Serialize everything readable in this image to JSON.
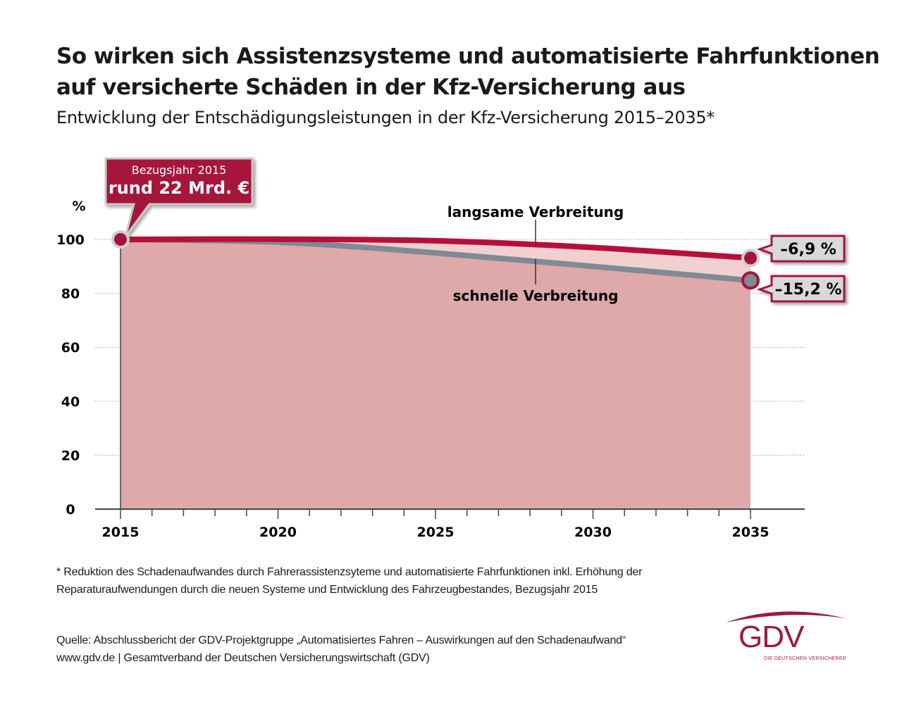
{
  "header": {
    "title_line1": "So wirken sich Assistenzsysteme und automatisierte Fahrfunktionen",
    "title_line2": "auf versicherte Schäden in der Kfz-Versicherung aus",
    "subtitle": "Entwicklung der Entschädigungsleistungen in der Kfz-Versicherung 2015–2035*"
  },
  "chart_data": {
    "type": "area",
    "title": "Entwicklung der Entschädigungsleistungen in der Kfz-Versicherung 2015–2035*",
    "xlabel": "",
    "ylabel": "%",
    "x": [
      2015,
      2020,
      2025,
      2030,
      2035
    ],
    "xlim": [
      2015,
      2035
    ],
    "ylim": [
      0,
      100
    ],
    "x_ticks": [
      "2015",
      "2020",
      "2025",
      "2030",
      "2035"
    ],
    "y_ticks": [
      "0",
      "20",
      "40",
      "60",
      "80",
      "100"
    ],
    "grid": true,
    "series": [
      {
        "name": "langsame Verbreitung",
        "color": "#b5103a",
        "values": [
          100,
          100.1,
          99.5,
          97,
          93.1
        ]
      },
      {
        "name": "schnelle Verbreitung",
        "color": "#7f8a94",
        "values": [
          100,
          99,
          95,
          90,
          84.8
        ]
      }
    ],
    "annotations": {
      "base": {
        "line1": "Bezugsjahr 2015",
        "line2": "rund 22 Mrd. €"
      },
      "end_slow": "–6,9 %",
      "end_fast": "–15,2 %"
    },
    "colors": {
      "accent": "#a6133a",
      "area_fill": "#dfa9a9",
      "band_fill": "#f1d0d0",
      "label_box": "#d9d9d9"
    }
  },
  "footnote": {
    "line1": "* Reduktion des Schadenaufwandes durch Fahrerassistenzsyteme und automatisierte Fahrfunktionen inkl.  Erhöhung der",
    "line2": "Reparaturaufwendungen durch die neuen Systeme und Entwicklung des Fahrzeugbestandes, Bezugsjahr 2015"
  },
  "source": {
    "line1": "Quelle: Abschlussbericht der GDV-Projektgruppe „Automatisiertes Fahren – Auswirkungen auf den Schadenaufwand“",
    "line2": "www.gdv.de | Gesamtverband der Deutschen Versicherungswirtschaft (GDV)"
  },
  "logo": {
    "text": "GDV",
    "tagline": "DIE DEUTSCHEN VERSICHERER"
  }
}
